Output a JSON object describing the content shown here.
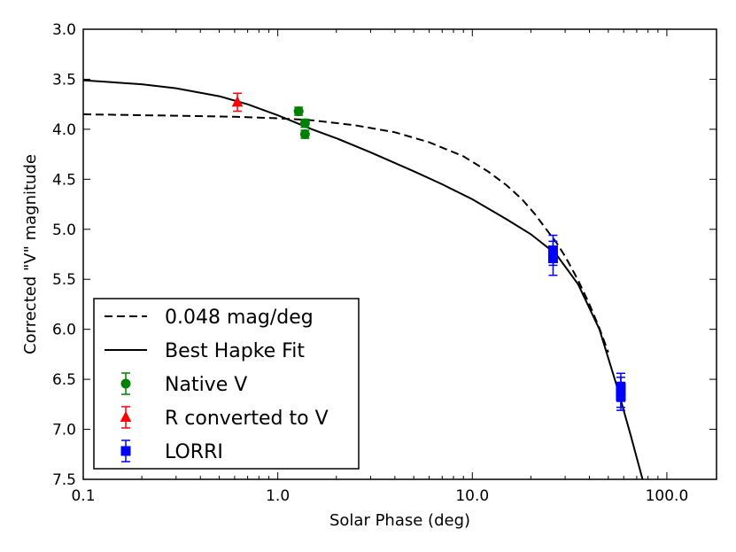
{
  "chart_data": {
    "type": "scatter",
    "xlabel": "Solar Phase (deg)",
    "ylabel": "Corrected \"V\" magnitude",
    "x_scale": "log",
    "xlim": [
      0.1,
      180
    ],
    "ylim": [
      3.0,
      7.5
    ],
    "y_inverted": true,
    "x_ticks": [
      0.1,
      1.0,
      10.0,
      100.0
    ],
    "x_tick_labels": [
      "0.1",
      "1.0",
      "10.0",
      "100.0"
    ],
    "y_ticks": [
      3.0,
      3.5,
      4.0,
      4.5,
      5.0,
      5.5,
      6.0,
      6.5,
      7.0,
      7.5
    ],
    "y_tick_labels": [
      "3.0",
      "3.5",
      "4.0",
      "4.5",
      "5.0",
      "5.5",
      "6.0",
      "6.5",
      "7.0",
      "7.5"
    ],
    "grid": false,
    "legend_position": "bottom-left",
    "series": [
      {
        "name": "0.048 mag/deg",
        "kind": "line",
        "style": "dashed",
        "color": "#000000",
        "x": [
          0.1,
          0.3,
          0.6,
          1.0,
          1.5,
          2.5,
          4,
          6,
          9,
          12,
          15,
          18,
          21,
          24,
          27,
          30,
          35,
          40,
          45,
          50
        ],
        "y": [
          3.85,
          3.865,
          3.875,
          3.89,
          3.91,
          3.96,
          4.03,
          4.13,
          4.27,
          4.42,
          4.56,
          4.7,
          4.85,
          5.0,
          5.13,
          5.27,
          5.51,
          5.75,
          5.99,
          6.23
        ]
      },
      {
        "name": "Best Hapke Fit",
        "kind": "line",
        "style": "solid",
        "color": "#000000",
        "x": [
          0.1,
          0.2,
          0.3,
          0.5,
          0.7,
          1.0,
          1.5,
          2.0,
          3.0,
          5.0,
          7.0,
          10.0,
          15.0,
          20.0,
          27.0,
          35.0,
          45.0,
          55.0,
          65.0,
          75.0
        ],
        "y": [
          3.51,
          3.55,
          3.59,
          3.67,
          3.75,
          3.86,
          4.0,
          4.09,
          4.23,
          4.42,
          4.55,
          4.7,
          4.9,
          5.05,
          5.25,
          5.55,
          6.0,
          6.55,
          7.05,
          7.5
        ]
      },
      {
        "name": "Native V",
        "kind": "points",
        "marker": "circle",
        "color": "#008000",
        "points": [
          {
            "x": 1.28,
            "y": 3.82,
            "err": 0.04
          },
          {
            "x": 1.38,
            "y": 3.94,
            "err": 0.04
          },
          {
            "x": 1.38,
            "y": 4.05,
            "err": 0.04
          }
        ]
      },
      {
        "name": "R converted to V",
        "kind": "points",
        "marker": "triangle",
        "color": "#ff0000",
        "points": [
          {
            "x": 0.62,
            "y": 3.73,
            "err": 0.09
          }
        ]
      },
      {
        "name": "LORRI",
        "kind": "points",
        "marker": "square",
        "color": "#0000ff",
        "points": [
          {
            "x": 26.0,
            "y": 5.21,
            "err": 0.15
          },
          {
            "x": 26.0,
            "y": 5.29,
            "err": 0.17
          },
          {
            "x": 58.0,
            "y": 6.58,
            "err": 0.14
          },
          {
            "x": 58.0,
            "y": 6.63,
            "err": 0.15
          },
          {
            "x": 58.0,
            "y": 6.67,
            "err": 0.14
          }
        ]
      }
    ]
  }
}
